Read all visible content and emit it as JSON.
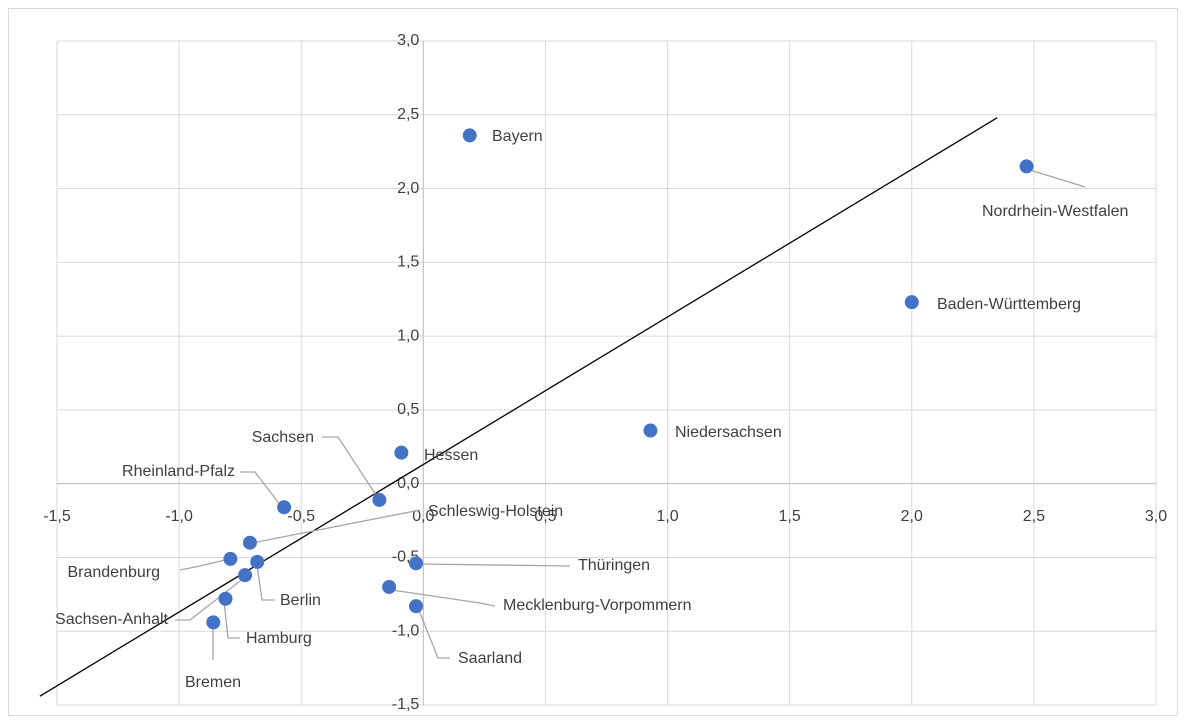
{
  "chart_data": {
    "type": "scatter",
    "labels": [
      "Bayern",
      "Nordrhein-Westfalen",
      "Baden-Württemberg",
      "Niedersachsen",
      "Hessen",
      "Sachsen",
      "Rheinland-Pfalz",
      "Schleswig-Holstein",
      "Brandenburg",
      "Berlin",
      "Sachsen-Anhalt",
      "Hamburg",
      "Bremen",
      "Thüringen",
      "Mecklenburg-Vorpommern",
      "Saarland"
    ],
    "x": [
      0.19,
      2.47,
      2.0,
      0.93,
      -0.09,
      -0.18,
      -0.57,
      -0.71,
      -0.79,
      -0.68,
      -0.73,
      -0.81,
      -0.86,
      -0.03,
      -0.14,
      -0.03
    ],
    "y": [
      2.36,
      2.15,
      1.23,
      0.36,
      0.21,
      -0.11,
      -0.16,
      -0.4,
      -0.51,
      -0.53,
      -0.62,
      -0.78,
      -0.94,
      -0.54,
      -0.7,
      -0.83
    ],
    "color": "#4472c4",
    "trendline": {
      "x": [
        -1.57,
        2.35
      ],
      "y": [
        -1.44,
        2.48
      ],
      "color": "#000000"
    },
    "xlim": [
      -1.5,
      3.0
    ],
    "ylim": [
      -1.5,
      3.0
    ],
    "xticks": [
      {
        "value": -1.5,
        "label": "-1,5"
      },
      {
        "value": -1.0,
        "label": "-1,0"
      },
      {
        "value": -0.5,
        "label": "-0,5"
      },
      {
        "value": 0,
        "label": "0,0"
      },
      {
        "value": 0.5,
        "label": "0,5"
      },
      {
        "value": 1.0,
        "label": "1,0"
      },
      {
        "value": 1.5,
        "label": "1,5"
      },
      {
        "value": 2.0,
        "label": "2,0"
      },
      {
        "value": 2.5,
        "label": "2,5"
      },
      {
        "value": 3.0,
        "label": "3,0"
      }
    ],
    "yticks": [
      {
        "value": -1.5,
        "label": "-1,5"
      },
      {
        "value": -1.0,
        "label": "-1,0"
      },
      {
        "value": -0.5,
        "label": "-0,5"
      },
      {
        "value": 0,
        "label": "0,0"
      },
      {
        "value": 0.5,
        "label": "0,5"
      },
      {
        "value": 1.0,
        "label": "1,0"
      },
      {
        "value": 1.5,
        "label": "1,5"
      },
      {
        "value": 2.0,
        "label": "2,0"
      },
      {
        "value": 2.5,
        "label": "2,5"
      },
      {
        "value": 3.0,
        "label": "3,0"
      }
    ],
    "grid": true
  }
}
